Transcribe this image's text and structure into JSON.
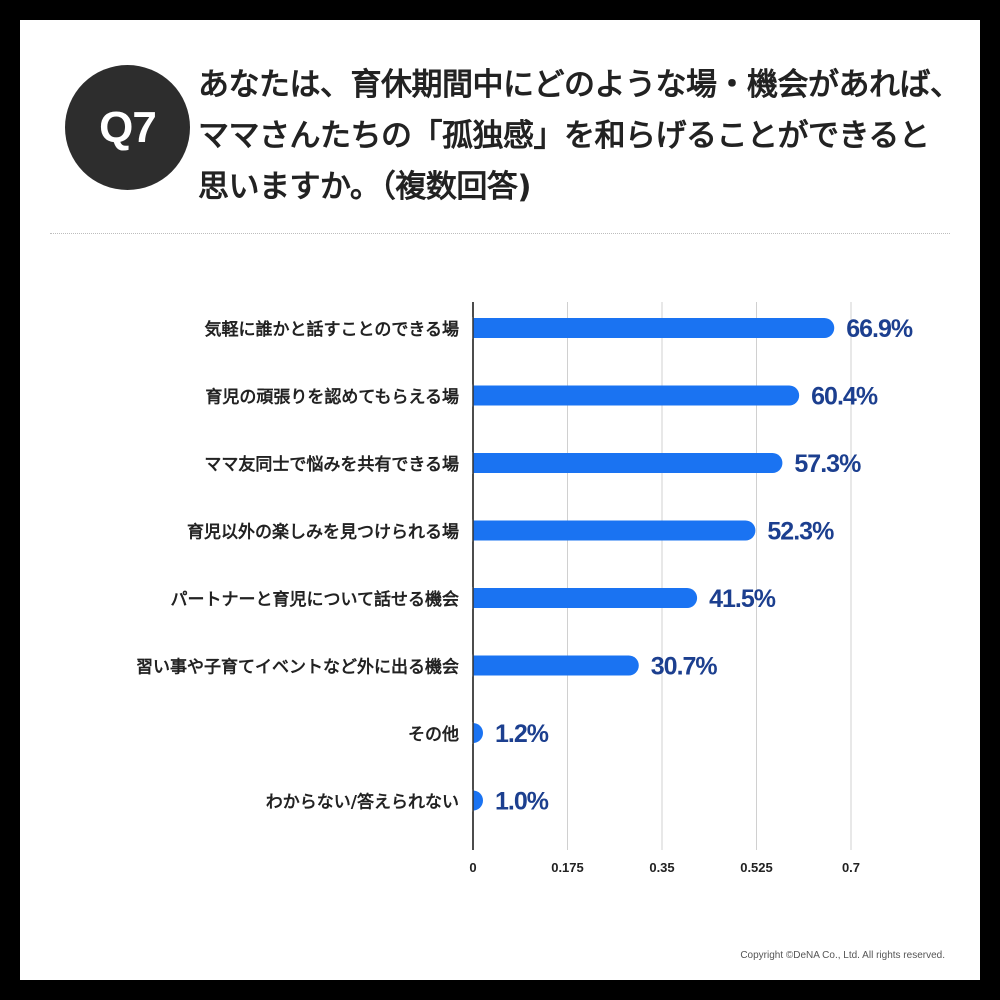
{
  "badge": "Q7",
  "title_lines": [
    "あなたは、育休期間中にどのような場・機会があれば、",
    "ママさんたちの「孤独感」を和らげることができると",
    "思いますか。（複数回答)"
  ],
  "copyright": "Copyright ©DeNA Co., Ltd. All rights reserved.",
  "colors": {
    "bar": "#1a73f2",
    "value_label": "#1c3f8f",
    "badge_bg": "#2d2d2d"
  },
  "chart_data": {
    "type": "bar",
    "orientation": "horizontal",
    "categories": [
      "気軽に誰かと話すことのできる場",
      "育児の頑張りを認めてもらえる場",
      "ママ友同士で悩みを共有できる場",
      "育児以外の楽しみを見つけられる場",
      "パートナーと育児について話せる機会",
      "習い事や子育てイベントなど外に出る機会",
      "その他",
      "わからない/答えられない"
    ],
    "values": [
      0.669,
      0.604,
      0.573,
      0.523,
      0.415,
      0.307,
      0.012,
      0.01
    ],
    "value_labels": [
      "66.9%",
      "60.4%",
      "57.3%",
      "52.3%",
      "41.5%",
      "30.7%",
      "1.2%",
      "1.0%"
    ],
    "x_ticks": [
      0,
      0.175,
      0.35,
      0.525,
      0.7
    ],
    "x_tick_labels": [
      "0",
      "0.175",
      "0.35",
      "0.525",
      "0.7"
    ],
    "xlim": [
      0,
      0.7
    ],
    "grid": true
  }
}
